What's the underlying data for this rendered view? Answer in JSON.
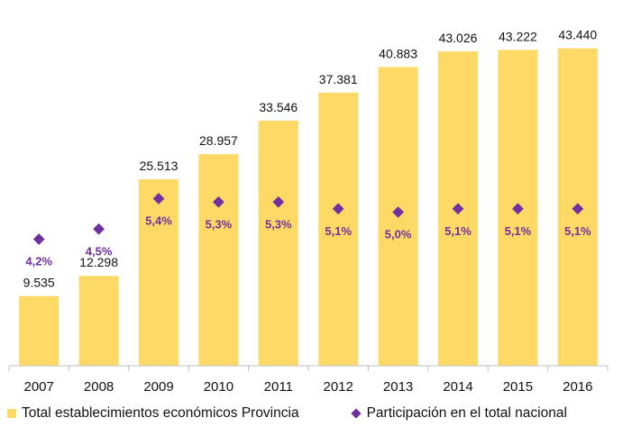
{
  "chart_data": {
    "type": "bar",
    "categories": [
      "2007",
      "2008",
      "2009",
      "2010",
      "2011",
      "2012",
      "2013",
      "2014",
      "2015",
      "2016"
    ],
    "series": [
      {
        "name": "Total establecimientos económicos Provincia",
        "type": "bar",
        "color": "#FFD966",
        "values": [
          9535,
          12298,
          25513,
          28957,
          33546,
          37381,
          40883,
          43026,
          43222,
          43440
        ],
        "labels": [
          "9.535",
          "12.298",
          "25.513",
          "28.957",
          "33.546",
          "37.381",
          "40.883",
          "43.026",
          "43.222",
          "43.440"
        ]
      },
      {
        "name": "Participación en el total nacional",
        "type": "scatter",
        "marker": "diamond",
        "color": "#7030A0",
        "values": [
          4.2,
          4.5,
          5.4,
          5.3,
          5.3,
          5.1,
          5.0,
          5.1,
          5.1,
          5.1
        ],
        "labels": [
          "4,2%",
          "4,5%",
          "5,4%",
          "5,3%",
          "5,3%",
          "5,1%",
          "5,0%",
          "5,1%",
          "5,1%",
          "5,1%"
        ]
      }
    ],
    "ylim": [
      0,
      48000
    ],
    "legend_position": "bottom",
    "grid": false
  }
}
